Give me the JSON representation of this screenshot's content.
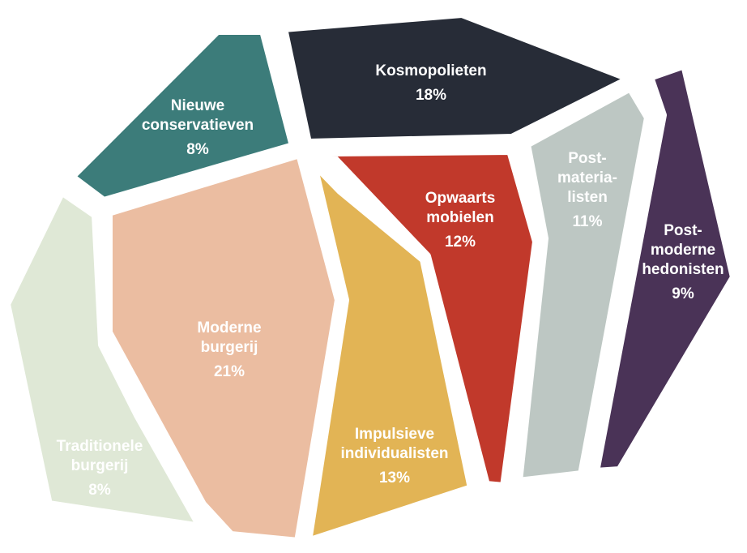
{
  "chart_data": {
    "type": "diagram",
    "segments": [
      {
        "id": "traditionele-burgerij",
        "label_lines": [
          "Traditionele",
          "burgerij"
        ],
        "share": "8%",
        "value": 8,
        "color": "#dfe8d6"
      },
      {
        "id": "nieuwe-conservatieven",
        "label_lines": [
          "Nieuwe",
          "conservatieven"
        ],
        "share": "8%",
        "value": 8,
        "color": "#3c7c7a"
      },
      {
        "id": "kosmopolieten",
        "label_lines": [
          "Kosmopolieten"
        ],
        "share": "18%",
        "value": 18,
        "color": "#272c37"
      },
      {
        "id": "moderne-burgerij",
        "label_lines": [
          "Moderne",
          "burgerij"
        ],
        "share": "21%",
        "value": 21,
        "color": "#ebbda1"
      },
      {
        "id": "impulsieve-individualisten",
        "label_lines": [
          "Impulsieve",
          "individualisten"
        ],
        "share": "13%",
        "value": 13,
        "color": "#e2b455"
      },
      {
        "id": "opwaarts-mobielen",
        "label_lines": [
          "Opwaarts",
          "mobielen"
        ],
        "share": "12%",
        "value": 12,
        "color": "#c1392b"
      },
      {
        "id": "postmaterialisten",
        "label_lines": [
          "Post-",
          "materia-",
          "listen"
        ],
        "share": "11%",
        "value": 11,
        "color": "#bdc7c3"
      },
      {
        "id": "postmoderne-hedonisten",
        "label_lines": [
          "Post-",
          "moderne",
          "hedonisten"
        ],
        "share": "9%",
        "value": 9,
        "color": "#4a3357"
      }
    ]
  }
}
